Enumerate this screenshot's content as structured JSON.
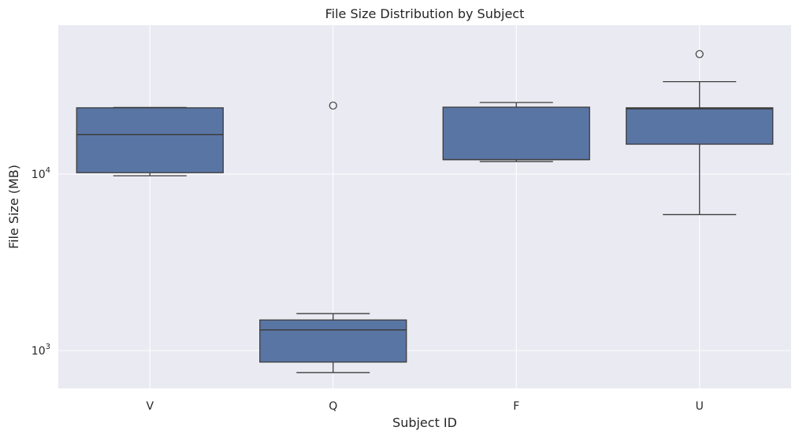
{
  "chart_data": {
    "type": "box",
    "title": "File Size Distribution by Subject",
    "xlabel": "Subject ID",
    "ylabel": "File Size (MB)",
    "yscale": "log",
    "ylim": [
      610,
      70000
    ],
    "y_ticks": [
      {
        "value": 1000,
        "base": "10",
        "exp": "3"
      },
      {
        "value": 10000,
        "base": "10",
        "exp": "4"
      }
    ],
    "grid": true,
    "categories": [
      "V",
      "Q",
      "F",
      "U"
    ],
    "boxes": [
      {
        "label": "V",
        "whisker_low": 9800,
        "q1": 10200,
        "median": 16800,
        "q3": 23800,
        "whisker_high": 23900,
        "outliers": []
      },
      {
        "label": "Q",
        "whisker_low": 750,
        "q1": 860,
        "median": 1310,
        "q3": 1490,
        "whisker_high": 1620,
        "outliers": [
          24500
        ]
      },
      {
        "label": "F",
        "whisker_low": 11800,
        "q1": 12100,
        "median": 12100,
        "q3": 24000,
        "whisker_high": 25500,
        "outliers": []
      },
      {
        "label": "U",
        "whisker_low": 5900,
        "q1": 14800,
        "median": 23500,
        "q3": 23800,
        "whisker_high": 33500,
        "outliers": [
          48000
        ]
      }
    ],
    "colors": {
      "box_fill": "#5975a4",
      "line": "#3d3d3d",
      "plot_bg": "#eaeaf2",
      "grid": "#ffffff"
    }
  }
}
